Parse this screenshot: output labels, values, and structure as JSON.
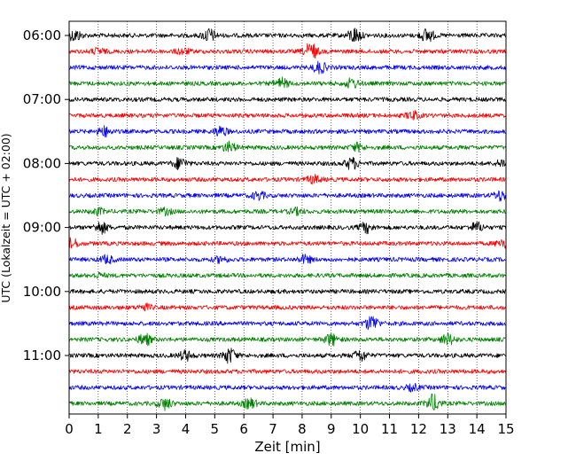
{
  "chart_data": {
    "type": "line",
    "title": "",
    "xlabel": "Zeit  [min]",
    "ylabel": "UTC (Lokalzeit = UTC + 02:00)",
    "xlim": [
      0,
      15
    ],
    "x_ticks": [
      0,
      1,
      2,
      3,
      4,
      5,
      6,
      7,
      8,
      9,
      10,
      11,
      12,
      13,
      14,
      15
    ],
    "x_tick_labels": [
      "0",
      "1",
      "2",
      "3",
      "4",
      "5",
      "6",
      "7",
      "8",
      "9",
      "10",
      "11",
      "12",
      "13",
      "14",
      "15"
    ],
    "y_tick_labels": [
      "06:00",
      "07:00",
      "08:00",
      "09:00",
      "10:00",
      "11:00"
    ],
    "y_tick_rows": [
      0,
      4,
      8,
      12,
      16,
      20
    ],
    "vertical_grid": "dotted",
    "color_cycle": [
      "#000000",
      "#ff0000",
      "#0000ff",
      "#008000"
    ],
    "series": [
      {
        "start": "06:00",
        "color": "#000000",
        "events": [
          {
            "x": 0.2,
            "amp": 6
          },
          {
            "x": 4.8,
            "amp": 7
          },
          {
            "x": 9.8,
            "amp": 8
          },
          {
            "x": 12.3,
            "amp": 7
          }
        ]
      },
      {
        "start": "06:15",
        "color": "#ff0000",
        "events": [
          {
            "x": 1.0,
            "amp": 3
          },
          {
            "x": 3.9,
            "amp": 3
          },
          {
            "x": 8.3,
            "amp": 9
          }
        ]
      },
      {
        "start": "06:30",
        "color": "#0000ff",
        "events": [
          {
            "x": 8.6,
            "amp": 6
          }
        ]
      },
      {
        "start": "06:45",
        "color": "#008000",
        "events": [
          {
            "x": 7.3,
            "amp": 5
          },
          {
            "x": 9.7,
            "amp": 5
          }
        ]
      },
      {
        "start": "07:00",
        "color": "#000000",
        "events": []
      },
      {
        "start": "07:15",
        "color": "#ff0000",
        "events": [
          {
            "x": 11.8,
            "amp": 4
          }
        ]
      },
      {
        "start": "07:30",
        "color": "#0000ff",
        "events": [
          {
            "x": 1.2,
            "amp": 5
          },
          {
            "x": 5.2,
            "amp": 5
          }
        ]
      },
      {
        "start": "07:45",
        "color": "#008000",
        "events": [
          {
            "x": 5.5,
            "amp": 5
          },
          {
            "x": 9.9,
            "amp": 4
          }
        ]
      },
      {
        "start": "08:00",
        "color": "#000000",
        "events": [
          {
            "x": 3.8,
            "amp": 6
          },
          {
            "x": 9.7,
            "amp": 6
          },
          {
            "x": 14.9,
            "amp": 4
          }
        ]
      },
      {
        "start": "08:15",
        "color": "#ff0000",
        "events": [
          {
            "x": 8.4,
            "amp": 4
          }
        ]
      },
      {
        "start": "08:30",
        "color": "#0000ff",
        "events": [
          {
            "x": 6.5,
            "amp": 4
          },
          {
            "x": 14.8,
            "amp": 5
          }
        ]
      },
      {
        "start": "08:45",
        "color": "#008000",
        "events": [
          {
            "x": 1.0,
            "amp": 3
          },
          {
            "x": 3.3,
            "amp": 3
          },
          {
            "x": 7.8,
            "amp": 3
          }
        ]
      },
      {
        "start": "09:00",
        "color": "#000000",
        "events": [
          {
            "x": 1.1,
            "amp": 6
          },
          {
            "x": 10.2,
            "amp": 5
          },
          {
            "x": 14.0,
            "amp": 5
          }
        ]
      },
      {
        "start": "09:15",
        "color": "#ff0000",
        "events": [
          {
            "x": 0.1,
            "amp": 5
          },
          {
            "x": 14.9,
            "amp": 5
          }
        ]
      },
      {
        "start": "09:30",
        "color": "#0000ff",
        "events": [
          {
            "x": 1.3,
            "amp": 4
          },
          {
            "x": 5.2,
            "amp": 3
          },
          {
            "x": 8.1,
            "amp": 4
          }
        ]
      },
      {
        "start": "09:45",
        "color": "#008000",
        "events": [
          {
            "x": 1.0,
            "amp": 2
          }
        ]
      },
      {
        "start": "10:00",
        "color": "#000000",
        "events": []
      },
      {
        "start": "10:15",
        "color": "#ff0000",
        "events": [
          {
            "x": 2.6,
            "amp": 3
          }
        ]
      },
      {
        "start": "10:30",
        "color": "#0000ff",
        "events": [
          {
            "x": 10.4,
            "amp": 8
          }
        ]
      },
      {
        "start": "10:45",
        "color": "#008000",
        "events": [
          {
            "x": 2.6,
            "amp": 6
          },
          {
            "x": 9.0,
            "amp": 6
          },
          {
            "x": 13.0,
            "amp": 6
          }
        ]
      },
      {
        "start": "11:00",
        "color": "#000000",
        "events": [
          {
            "x": 4.0,
            "amp": 5
          },
          {
            "x": 5.5,
            "amp": 8
          },
          {
            "x": 10.0,
            "amp": 6
          }
        ]
      },
      {
        "start": "11:15",
        "color": "#ff0000",
        "events": []
      },
      {
        "start": "11:30",
        "color": "#0000ff",
        "events": [
          {
            "x": 11.8,
            "amp": 3
          }
        ]
      },
      {
        "start": "11:45",
        "color": "#008000",
        "events": [
          {
            "x": 3.3,
            "amp": 6
          },
          {
            "x": 6.2,
            "amp": 5
          },
          {
            "x": 12.5,
            "amp": 9
          }
        ]
      }
    ]
  }
}
